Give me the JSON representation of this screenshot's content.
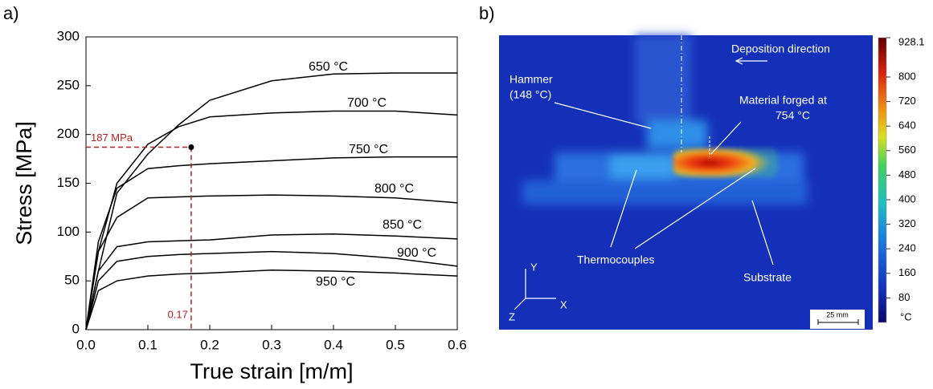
{
  "chart_data": {
    "type": "line",
    "panel_label": "a)",
    "x_label": "True strain [m/m]",
    "y_label": "Stress [MPa]",
    "x": [
      0,
      0.02,
      0.05,
      0.1,
      0.15,
      0.2,
      0.3,
      0.4,
      0.5,
      0.6
    ],
    "series": [
      {
        "name": "650 °C",
        "color": "#000000",
        "values": [
          0,
          60,
          140,
          180,
          210,
          235,
          255,
          262,
          263,
          263
        ]
      },
      {
        "name": "700 °C",
        "color": "#000000",
        "values": [
          0,
          80,
          150,
          190,
          208,
          218,
          222,
          224,
          224,
          220
        ]
      },
      {
        "name": "750 °C",
        "color": "#000000",
        "values": [
          0,
          90,
          145,
          165,
          168,
          170,
          173,
          176,
          177,
          177
        ]
      },
      {
        "name": "800 °C",
        "color": "#000000",
        "values": [
          0,
          80,
          115,
          135,
          136,
          137,
          138,
          137,
          135,
          130
        ]
      },
      {
        "name": "850 °C",
        "color": "#000000",
        "values": [
          0,
          60,
          85,
          90,
          91,
          92,
          97,
          98,
          96,
          93
        ]
      },
      {
        "name": "900 °C",
        "color": "#000000",
        "values": [
          0,
          50,
          70,
          75,
          77,
          78,
          80,
          78,
          73,
          65
        ]
      },
      {
        "name": "950 °C",
        "color": "#000000",
        "values": [
          0,
          40,
          50,
          55,
          57,
          58,
          61,
          60,
          58,
          55
        ]
      }
    ],
    "xlim": [
      0,
      0.6
    ],
    "ylim": [
      0,
      300
    ],
    "xticks": [
      {
        "value": 0,
        "label": "0.0"
      },
      0.1,
      0.2,
      0.3,
      0.4,
      0.5,
      0.6
    ],
    "yticks": [
      0,
      50,
      100,
      150,
      200,
      250,
      300
    ],
    "marker": {
      "x": 0.17,
      "y": 187,
      "x_label": "0.17",
      "y_label": "187 MPa",
      "color": "#b22222"
    }
  },
  "thermal_image": {
    "panel_label": "b)",
    "direction_label": "Deposition direction",
    "hammer_label": [
      "Hammer",
      "(148 °C)"
    ],
    "forged_label": [
      "Material forged at",
      "754 °C"
    ],
    "thermocouples_label": "Thermocouples",
    "substrate_label": "Substrate",
    "axes_labels": [
      "Y",
      "X",
      "Z"
    ],
    "scale_label": "25 mm",
    "colorbar": {
      "lim": [
        0,
        928.1
      ],
      "ticks": [
        80,
        160,
        240,
        320,
        400,
        480,
        560,
        640,
        720,
        800,
        928.1
      ],
      "unit_label": "°C"
    }
  }
}
